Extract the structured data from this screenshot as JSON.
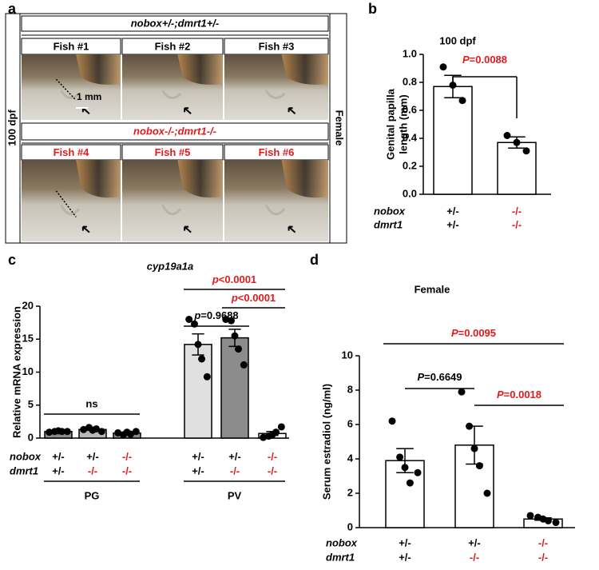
{
  "panel_labels": [
    "a",
    "b",
    "c",
    "d"
  ],
  "image_panel": {
    "side_label": "100 dpf",
    "right_label": "Female",
    "scale_bar": "1 mm",
    "groups": [
      {
        "title": "nobox+/-;dmrt1+/-",
        "fish": [
          "Fish #1",
          "Fish #2",
          "Fish #3"
        ]
      },
      {
        "title": "nobox-/-;dmrt1-/-",
        "fish": [
          "Fish #4",
          "Fish #5",
          "Fish #6"
        ]
      }
    ]
  },
  "chart_data": [
    {
      "type": "bar",
      "title": "100 dpf",
      "ylabel": [
        "Genital papilla",
        "length (mm)"
      ],
      "ylim": [
        0,
        1.0
      ],
      "yticks": [
        {
          "value": 0,
          "label": "0.0"
        },
        0.2,
        0.4,
        0.6,
        0.8,
        {
          "value": 1.0,
          "label": "1.0"
        }
      ],
      "values": [
        0.77,
        0.37
      ],
      "errors": [
        0.08,
        0.04
      ],
      "points": [
        [
          0.91,
          0.78,
          0.67
        ],
        [
          0.42,
          0.37,
          0.31
        ]
      ],
      "bar_colors": [
        "#ffffff",
        "#ffffff"
      ],
      "genotype_rows": [
        {
          "name": "nobox",
          "labels": [
            "+/-",
            "-/-"
          ],
          "colors": [
            "#000000",
            "#e31a1c"
          ]
        },
        {
          "name": "dmrt1",
          "labels": [
            "+/-",
            "-/-"
          ],
          "colors": [
            "#000000",
            "#e31a1c"
          ]
        }
      ],
      "comparisons": [
        {
          "label": "P=0.0088",
          "color": "#e31a1c"
        }
      ]
    },
    {
      "type": "bar",
      "title": "cyp19a1a",
      "ylabel": "Relative mRNA expression",
      "ylim": [
        0,
        20
      ],
      "yticks": [
        0,
        5,
        10,
        15,
        20
      ],
      "values": [
        1.0,
        1.3,
        0.76,
        14.2,
        15.2,
        0.7
      ],
      "errors": [
        0.05,
        0.1,
        0.09,
        1.6,
        1.3,
        0.3
      ],
      "points": [
        [
          0.9,
          1.0,
          1.1,
          1.0,
          1.0
        ],
        [
          1.3,
          1.6,
          1.2,
          1.4,
          1.0
        ],
        [
          0.8,
          0.5,
          0.9,
          0.6,
          1.0
        ],
        [
          18.0,
          17.3,
          14.2,
          12.0,
          9.3
        ],
        [
          18.0,
          17.8,
          15.5,
          13.5,
          11.1
        ],
        [
          0.1,
          0.3,
          0.5,
          0.9,
          1.7
        ]
      ],
      "bar_colors": [
        "#8c8c8c",
        "#b8b8b8",
        "#8c8c8c",
        "#e0e0e0",
        "#8c8c8c",
        "#ffffff"
      ],
      "genotype_rows": [
        {
          "name": "nobox",
          "labels": [
            "+/-",
            "+/-",
            "-/-",
            "+/-",
            "+/-",
            "-/-"
          ],
          "colors": [
            "#000000",
            "#000000",
            "#e31a1c",
            "#000000",
            "#000000",
            "#e31a1c"
          ]
        },
        {
          "name": "dmrt1",
          "labels": [
            "+/-",
            "-/-",
            "-/-",
            "+/-",
            "-/-",
            "-/-"
          ],
          "colors": [
            "#000000",
            "#e31a1c",
            "#e31a1c",
            "#000000",
            "#e31a1c",
            "#e31a1c"
          ]
        }
      ],
      "groups": [
        "PG",
        "PV"
      ],
      "comparisons": [
        {
          "label": "ns",
          "color": "#000000"
        },
        {
          "label": "p=0.9688",
          "color": "#000000"
        },
        {
          "label": "p<0.0001",
          "color": "#e31a1c"
        },
        {
          "label": "p<0.0001",
          "color": "#e31a1c"
        }
      ]
    },
    {
      "type": "bar",
      "title": "Female",
      "ylabel": "Serum estradiol (ng/ml)",
      "ylim": [
        0,
        10
      ],
      "yticks": [
        0,
        2,
        4,
        6,
        8,
        10
      ],
      "values": [
        3.9,
        4.8,
        0.5
      ],
      "errors": [
        0.7,
        1.1,
        0.07
      ],
      "points": [
        [
          6.2,
          4.1,
          3.5,
          2.6,
          3.2
        ],
        [
          7.9,
          5.9,
          4.6,
          3.6,
          2.0
        ],
        [
          0.7,
          0.6,
          0.5,
          0.4,
          0.3
        ]
      ],
      "bar_colors": [
        "#ffffff",
        "#ffffff",
        "#ffffff"
      ],
      "genotype_rows": [
        {
          "name": "nobox",
          "labels": [
            "+/-",
            "+/-",
            "-/-"
          ],
          "colors": [
            "#000000",
            "#000000",
            "#e31a1c"
          ]
        },
        {
          "name": "dmrt1",
          "labels": [
            "+/-",
            "-/-",
            "-/-"
          ],
          "colors": [
            "#000000",
            "#e31a1c",
            "#e31a1c"
          ]
        }
      ],
      "comparisons": [
        {
          "label": "P=0.0095",
          "color": "#e31a1c"
        },
        {
          "label": "P=0.6649",
          "color": "#000000"
        },
        {
          "label": "P=0.0018",
          "color": "#e31a1c"
        }
      ]
    }
  ]
}
